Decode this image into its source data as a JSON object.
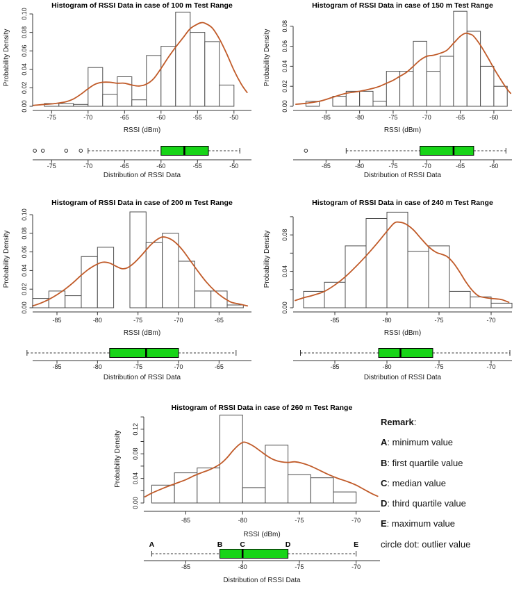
{
  "colors": {
    "curve": "#c05a28",
    "box_fill": "#17d417",
    "bar_stroke": "#4d4d4d",
    "axis": "#333333",
    "text": "#1a1a1a"
  },
  "remark": {
    "title": "Remark",
    "title_colon": ":",
    "items": [
      {
        "term": "A",
        "desc": ": minimum value"
      },
      {
        "term": "B",
        "desc": ": first quartile value"
      },
      {
        "term": "C",
        "desc": ": median value"
      },
      {
        "term": "D",
        "desc": ": third quartile value"
      },
      {
        "term": "E",
        "desc": ": maximum value"
      },
      {
        "term": "",
        "desc": "circle dot: outlier value"
      }
    ]
  },
  "chart_data": [
    {
      "type": "histogram+density+boxplot",
      "title": "Histogram of RSSI Data in case of 100 m Test Range",
      "xlabel": "RSSI (dBm)",
      "ylabel": "Probability Density",
      "box_label": "Distribution of RSSI Data",
      "xlim": [
        -77.6,
        -47.6
      ],
      "ymax": 0.1053,
      "xticks": [
        -75,
        -70,
        -65,
        -60,
        -55,
        -50
      ],
      "yticks": [
        0,
        0.02,
        0.04,
        0.06,
        0.08,
        0.1
      ],
      "ytick_labels": [
        "0.00",
        "0.02",
        "0.04",
        "0.06",
        "0.08",
        "0.10"
      ],
      "bins": {
        "start": -76,
        "width": 2,
        "densities": [
          0.003,
          0.003,
          0.002,
          0.042,
          0.013,
          0.032,
          0.007,
          0.055,
          0.065,
          0.102,
          0.08,
          0.07,
          0.023
        ]
      },
      "curve": [
        [
          -77.5,
          0.001
        ],
        [
          -76,
          0.002
        ],
        [
          -74.5,
          0.003
        ],
        [
          -73,
          0.005
        ],
        [
          -72,
          0.008
        ],
        [
          -71,
          0.013
        ],
        [
          -70,
          0.019
        ],
        [
          -69,
          0.024
        ],
        [
          -68,
          0.026
        ],
        [
          -67,
          0.026
        ],
        [
          -66,
          0.025
        ],
        [
          -65,
          0.025
        ],
        [
          -64,
          0.023
        ],
        [
          -63,
          0.022
        ],
        [
          -62,
          0.024
        ],
        [
          -61,
          0.03
        ],
        [
          -60,
          0.041
        ],
        [
          -59,
          0.053
        ],
        [
          -58,
          0.064
        ],
        [
          -57,
          0.074
        ],
        [
          -56,
          0.084
        ],
        [
          -55,
          0.089
        ],
        [
          -54.5,
          0.0905
        ],
        [
          -54,
          0.09
        ],
        [
          -53,
          0.085
        ],
        [
          -52,
          0.073
        ],
        [
          -51,
          0.057
        ],
        [
          -50,
          0.039
        ],
        [
          -49,
          0.024
        ],
        [
          -48.2,
          0.015
        ]
      ],
      "boxplot": {
        "outliers": [
          -77.3,
          -76.2,
          -73,
          -71
        ],
        "min": -70,
        "q1": -60,
        "median": -56.8,
        "q3": -53.5,
        "max": -49.2
      }
    },
    {
      "type": "histogram+density+boxplot",
      "title": "Histogram of RSSI Data in case of 150 m Test Range",
      "xlabel": "RSSI (dBm)",
      "ylabel": "Probability Density",
      "box_label": "Distribution of RSSI Data",
      "xlim": [
        -89.9,
        -57.3
      ],
      "ymax": 0.0972,
      "xticks": [
        -85,
        -80,
        -75,
        -70,
        -65,
        -60
      ],
      "yticks": [
        0,
        0.02,
        0.04,
        0.06,
        0.08
      ],
      "ytick_labels": [
        "0.00",
        "0.02",
        "0.04",
        "0.06",
        "0.08"
      ],
      "bins": {
        "start": -88,
        "width": 2,
        "densities": [
          0.005,
          0,
          0.01,
          0.015,
          0.015,
          0.005,
          0.035,
          0.035,
          0.065,
          0.035,
          0.05,
          0.095,
          0.075,
          0.04,
          0.02
        ]
      },
      "curve": [
        [
          -89.5,
          0.002
        ],
        [
          -88,
          0.003
        ],
        [
          -86,
          0.005
        ],
        [
          -84,
          0.009
        ],
        [
          -82,
          0.013
        ],
        [
          -80,
          0.015
        ],
        [
          -78,
          0.018
        ],
        [
          -77,
          0.02
        ],
        [
          -76,
          0.023
        ],
        [
          -75,
          0.026
        ],
        [
          -74,
          0.03
        ],
        [
          -73,
          0.034
        ],
        [
          -72,
          0.04
        ],
        [
          -71,
          0.046
        ],
        [
          -70,
          0.05
        ],
        [
          -69,
          0.051
        ],
        [
          -68,
          0.053
        ],
        [
          -67,
          0.056
        ],
        [
          -66,
          0.063
        ],
        [
          -65,
          0.07
        ],
        [
          -64.2,
          0.073
        ],
        [
          -63.5,
          0.072
        ],
        [
          -63,
          0.07
        ],
        [
          -62,
          0.061
        ],
        [
          -61,
          0.05
        ],
        [
          -60,
          0.038
        ],
        [
          -59,
          0.027
        ],
        [
          -58,
          0.017
        ],
        [
          -57.5,
          0.013
        ]
      ],
      "boxplot": {
        "outliers": [
          -88
        ],
        "min": -82,
        "q1": -71,
        "median": -66,
        "q3": -63,
        "max": -58.2
      }
    },
    {
      "type": "histogram+density+boxplot",
      "title": "Histogram of RSSI Data in case of 200 m Test Range",
      "xlabel": "RSSI (dBm)",
      "ylabel": "Probability Density",
      "box_label": "Distribution of RSSI Data",
      "xlim": [
        -88,
        -61
      ],
      "ymax": 0.1045,
      "xticks": [
        -85,
        -80,
        -75,
        -70,
        -65
      ],
      "yticks": [
        0,
        0.02,
        0.04,
        0.06,
        0.08,
        0.1
      ],
      "ytick_labels": [
        "0.00",
        "0.02",
        "0.04",
        "0.06",
        "0.08",
        "0.10"
      ],
      "bins": {
        "start": -88,
        "width": 2,
        "densities": [
          0.01,
          0.018,
          0.013,
          0.055,
          0.065,
          0,
          0.103,
          0.07,
          0.08,
          0.05,
          0.018,
          0.018,
          0.003
        ]
      },
      "curve": [
        [
          -88,
          0.002
        ],
        [
          -87,
          0.005
        ],
        [
          -86,
          0.009
        ],
        [
          -85,
          0.014
        ],
        [
          -84,
          0.02
        ],
        [
          -83,
          0.027
        ],
        [
          -82,
          0.035
        ],
        [
          -81,
          0.042
        ],
        [
          -80,
          0.047
        ],
        [
          -79.3,
          0.049
        ],
        [
          -78.5,
          0.048
        ],
        [
          -77.8,
          0.045
        ],
        [
          -77,
          0.042
        ],
        [
          -76.3,
          0.043
        ],
        [
          -75.5,
          0.048
        ],
        [
          -74.5,
          0.057
        ],
        [
          -73.5,
          0.067
        ],
        [
          -72.7,
          0.073
        ],
        [
          -72,
          0.076
        ],
        [
          -71.3,
          0.075
        ],
        [
          -70.5,
          0.071
        ],
        [
          -69.5,
          0.062
        ],
        [
          -68.5,
          0.05
        ],
        [
          -67.5,
          0.038
        ],
        [
          -66.5,
          0.027
        ],
        [
          -65.5,
          0.018
        ],
        [
          -64.5,
          0.011
        ],
        [
          -63.5,
          0.006
        ],
        [
          -62.5,
          0.004
        ],
        [
          -61.5,
          0.002
        ]
      ],
      "boxplot": {
        "outliers": [],
        "min": -88.7,
        "q1": -78.5,
        "median": -74,
        "q3": -70,
        "max": -62.9
      }
    },
    {
      "type": "histogram+density+boxplot",
      "title": "Histogram of RSSI Data in case of 240 m Test Range",
      "xlabel": "RSSI (dBm)",
      "ylabel": "Probability Density",
      "box_label": "Distribution of RSSI Data",
      "xlim": [
        -89,
        -68
      ],
      "ymax": 0.1068,
      "xticks": [
        -85,
        -80,
        -75,
        -70
      ],
      "yticks": [
        0,
        0.02,
        0.04,
        0.06,
        0.08,
        0.1
      ],
      "ytick_labels": [
        "0.00",
        "",
        "0.04",
        "",
        "0.08",
        ""
      ],
      "bins": {
        "start": -88,
        "width": 2,
        "densities": [
          0.018,
          0.028,
          0.068,
          0.098,
          0.105,
          0.062,
          0.068,
          0.018,
          0.012,
          0.005
        ]
      },
      "curve": [
        [
          -88.8,
          0.008
        ],
        [
          -88,
          0.011
        ],
        [
          -87,
          0.014
        ],
        [
          -86,
          0.018
        ],
        [
          -85,
          0.025
        ],
        [
          -84,
          0.034
        ],
        [
          -83,
          0.045
        ],
        [
          -82,
          0.057
        ],
        [
          -81,
          0.07
        ],
        [
          -80,
          0.084
        ],
        [
          -79.3,
          0.093
        ],
        [
          -78.8,
          0.094
        ],
        [
          -78.2,
          0.092
        ],
        [
          -77.5,
          0.086
        ],
        [
          -76.8,
          0.077
        ],
        [
          -76,
          0.067
        ],
        [
          -75.3,
          0.061
        ],
        [
          -74.8,
          0.059
        ],
        [
          -74.2,
          0.056
        ],
        [
          -73.6,
          0.049
        ],
        [
          -73,
          0.039
        ],
        [
          -72.4,
          0.028
        ],
        [
          -71.8,
          0.019
        ],
        [
          -71.2,
          0.013
        ],
        [
          -70.5,
          0.011
        ],
        [
          -69.8,
          0.01
        ],
        [
          -69,
          0.009
        ],
        [
          -68.3,
          0.006
        ]
      ],
      "boxplot": {
        "outliers": [],
        "min": -88.3,
        "q1": -80.8,
        "median": -78.7,
        "q3": -75.6,
        "max": -68.2
      }
    },
    {
      "type": "histogram+density+boxplot",
      "title": "Histogram of RSSI Data in case of 260 m Test Range",
      "xlabel": "RSSI (dBm)",
      "ylabel": "Probability Density",
      "box_label": "Distribution of RSSI Data",
      "xlim": [
        -88.7,
        -67.9
      ],
      "ymax": 0.1435,
      "xticks": [
        -85,
        -80,
        -75,
        -70
      ],
      "yticks": [
        0,
        0.02,
        0.04,
        0.06,
        0.08,
        0.1,
        0.12,
        0.14
      ],
      "ytick_labels": [
        "0.00",
        "",
        "0.04",
        "",
        "0.08",
        "",
        "0.12",
        ""
      ],
      "bins": {
        "start": -88,
        "width": 2,
        "densities": [
          0.029,
          0.049,
          0.057,
          0.143,
          0.025,
          0.094,
          0.046,
          0.041,
          0.018
        ]
      },
      "curve": [
        [
          -88.6,
          0.01
        ],
        [
          -88,
          0.016
        ],
        [
          -87,
          0.024
        ],
        [
          -86,
          0.031
        ],
        [
          -85,
          0.038
        ],
        [
          -84.2,
          0.045
        ],
        [
          -83.5,
          0.05
        ],
        [
          -82.8,
          0.055
        ],
        [
          -82,
          0.063
        ],
        [
          -81.4,
          0.073
        ],
        [
          -80.8,
          0.086
        ],
        [
          -80.3,
          0.095
        ],
        [
          -79.9,
          0.099
        ],
        [
          -79.5,
          0.097
        ],
        [
          -79,
          0.092
        ],
        [
          -78.4,
          0.084
        ],
        [
          -77.8,
          0.076
        ],
        [
          -77.2,
          0.07
        ],
        [
          -76.6,
          0.067
        ],
        [
          -76,
          0.066
        ],
        [
          -75.4,
          0.067
        ],
        [
          -74.8,
          0.065
        ],
        [
          -74,
          0.06
        ],
        [
          -73.2,
          0.053
        ],
        [
          -72.4,
          0.046
        ],
        [
          -71.6,
          0.04
        ],
        [
          -70.8,
          0.035
        ],
        [
          -70,
          0.029
        ],
        [
          -69.3,
          0.022
        ],
        [
          -68.6,
          0.015
        ],
        [
          -68.1,
          0.011
        ]
      ],
      "boxplot": {
        "outliers": [],
        "min": -88,
        "q1": -82,
        "median": -80,
        "q3": -76,
        "max": -70,
        "letters": [
          "A",
          "B",
          "C",
          "D",
          "E"
        ]
      }
    }
  ]
}
